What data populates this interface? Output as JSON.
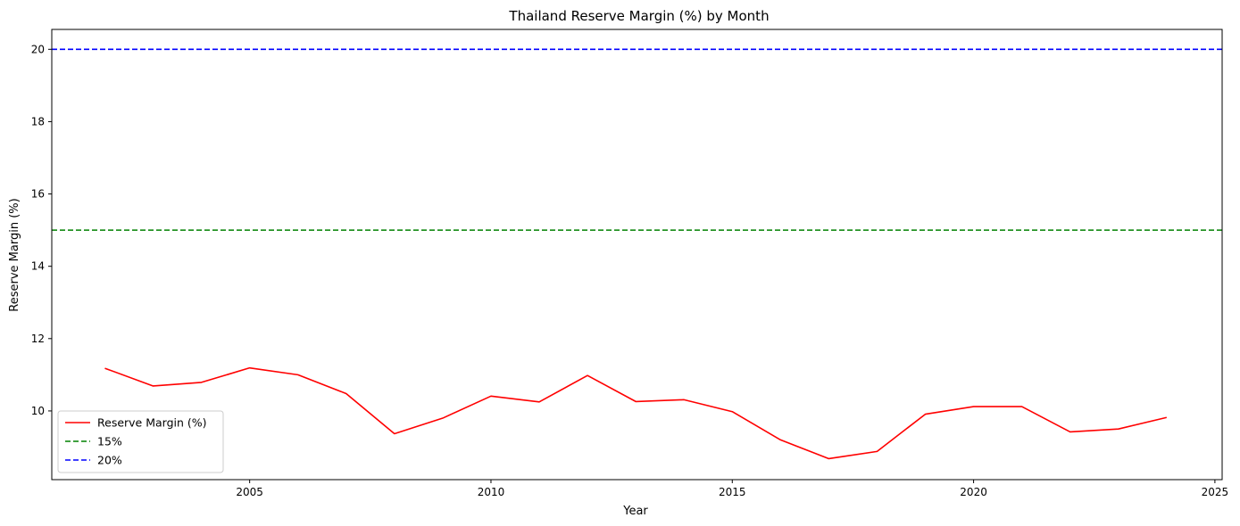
{
  "chart_data": {
    "type": "line",
    "title": "Thailand Reserve Margin (%) by Month",
    "xlabel": "Year",
    "ylabel": "Reserve Margin (%)",
    "xlim": [
      2000.9,
      2025.15
    ],
    "ylim": [
      8.1,
      20.55
    ],
    "xticks": [
      2005,
      2010,
      2015,
      2020,
      2025
    ],
    "yticks": [
      10,
      12,
      14,
      16,
      18,
      20
    ],
    "grid": false,
    "legend_position": "lower-left",
    "series": [
      {
        "name": "Reserve Margin (%)",
        "color": "#ff0000",
        "style": "solid",
        "x": [
          2002,
          2003,
          2004,
          2005,
          2006,
          2007,
          2008,
          2009,
          2010,
          2011,
          2012,
          2013,
          2014,
          2015,
          2016,
          2017,
          2018,
          2019,
          2020,
          2021,
          2022,
          2023,
          2024
        ],
        "y": [
          11.18,
          10.69,
          10.79,
          11.19,
          11.0,
          10.48,
          9.37,
          9.8,
          10.41,
          10.25,
          10.98,
          10.26,
          10.31,
          9.98,
          9.2,
          8.68,
          8.88,
          9.91,
          10.12,
          10.12,
          9.42,
          9.5,
          9.82
        ]
      }
    ],
    "reference_lines": [
      {
        "name": "15%",
        "value": 15,
        "color": "#008000",
        "style": "dashed"
      },
      {
        "name": "20%",
        "value": 20,
        "color": "#0000ff",
        "style": "dashed"
      }
    ]
  }
}
